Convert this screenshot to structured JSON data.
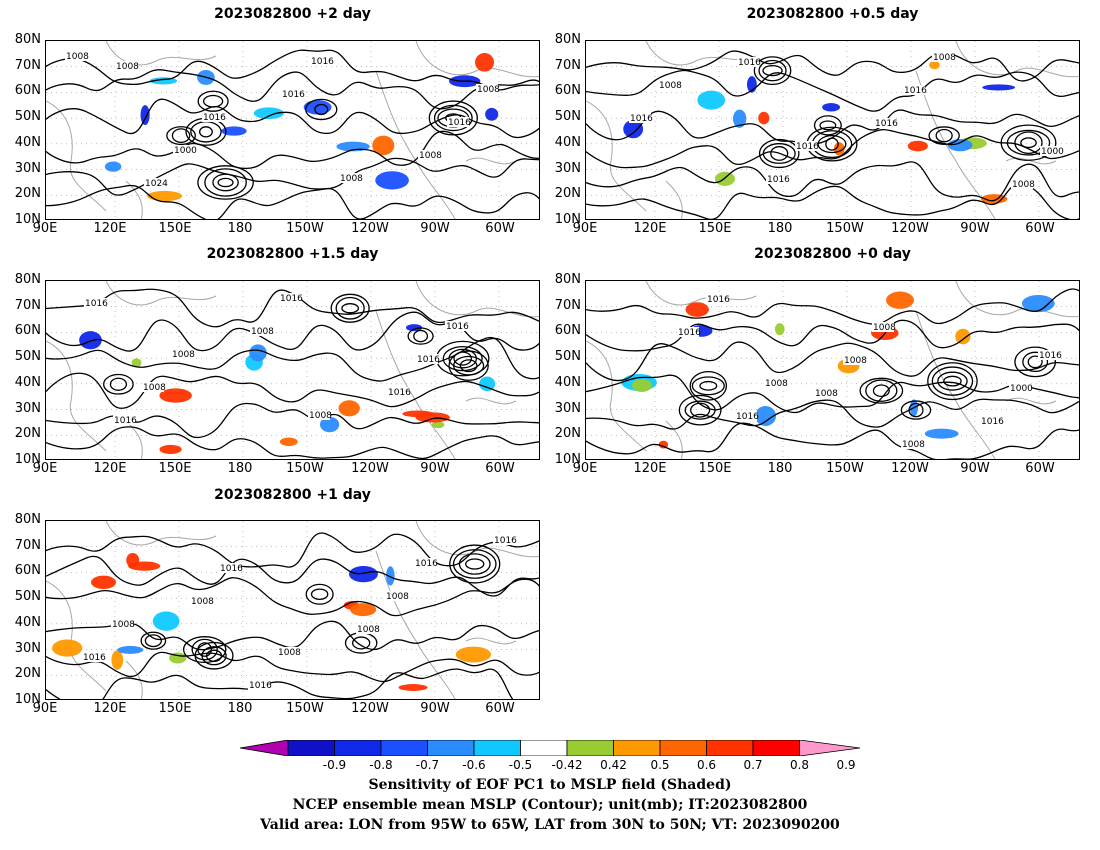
{
  "panels": [
    {
      "id": "p1",
      "title": "2023082800 +2 day",
      "lead": "+2 day",
      "contour_labels": [
        "1008",
        "1016",
        "1008",
        "1008",
        "1000",
        "1016",
        "1016",
        "1024",
        "1016",
        "1008",
        "1008"
      ],
      "lows": 6
    },
    {
      "id": "p2",
      "title": "2023082800 +0.5 day",
      "lead": "+0.5 day",
      "contour_labels": [
        "1008",
        "1016",
        "1008",
        "1016",
        "1016",
        "1016",
        "1000",
        "1016",
        "1016",
        "1008"
      ],
      "lows": 6
    },
    {
      "id": "p3",
      "title": "2023082800 +1.5 day",
      "lead": "+1.5 day",
      "contour_labels": [
        "1008",
        "1008",
        "1016",
        "1008",
        "1016",
        "1016",
        "1016",
        "1008",
        "1016",
        "1016"
      ],
      "lows": 5
    },
    {
      "id": "p4",
      "title": "2023082800 +0 day",
      "lead": "+0 day",
      "contour_labels": [
        "1008",
        "1008",
        "1016",
        "1016",
        "1008",
        "1000",
        "1016",
        "1008",
        "1016",
        "1016",
        "1008"
      ],
      "lows": 6
    },
    {
      "id": "p5",
      "title": "2023082800 +1 day",
      "lead": "+1 day",
      "contour_labels": [
        "1008",
        "1016",
        "1008",
        "1016",
        "1008",
        "1016",
        "1016",
        "1008",
        "1016",
        "1008"
      ],
      "lows": 6
    }
  ],
  "axes": {
    "y_ticks": [
      "80N",
      "70N",
      "60N",
      "50N",
      "40N",
      "30N",
      "20N",
      "10N"
    ],
    "x_ticks": [
      "90E",
      "120E",
      "150E",
      "180",
      "150W",
      "120W",
      "90W",
      "60W"
    ]
  },
  "colorbar": {
    "ticks": [
      "-0.9",
      "-0.8",
      "-0.7",
      "-0.6",
      "-0.5",
      "-0.42",
      "0.42",
      "0.5",
      "0.6",
      "0.7",
      "0.8",
      "0.9"
    ],
    "colors": [
      "#b000b0",
      "#1010c8",
      "#1028e8",
      "#1a50ff",
      "#2a8cff",
      "#10c8ff",
      "#ffffff",
      "#99cc33",
      "#ff9900",
      "#ff6600",
      "#ff3300",
      "#ff0000",
      "#ff99cc"
    ]
  },
  "footer": {
    "line1": "Sensitivity of EOF PC1 to MSLP field (Shaded)",
    "line2": "NCEP ensemble mean MSLP (Contour); unit(mb); IT:2023082800",
    "line3": "Valid area: LON from 95W to 65W, LAT from 30N to 50N; VT: 2023090200"
  }
}
